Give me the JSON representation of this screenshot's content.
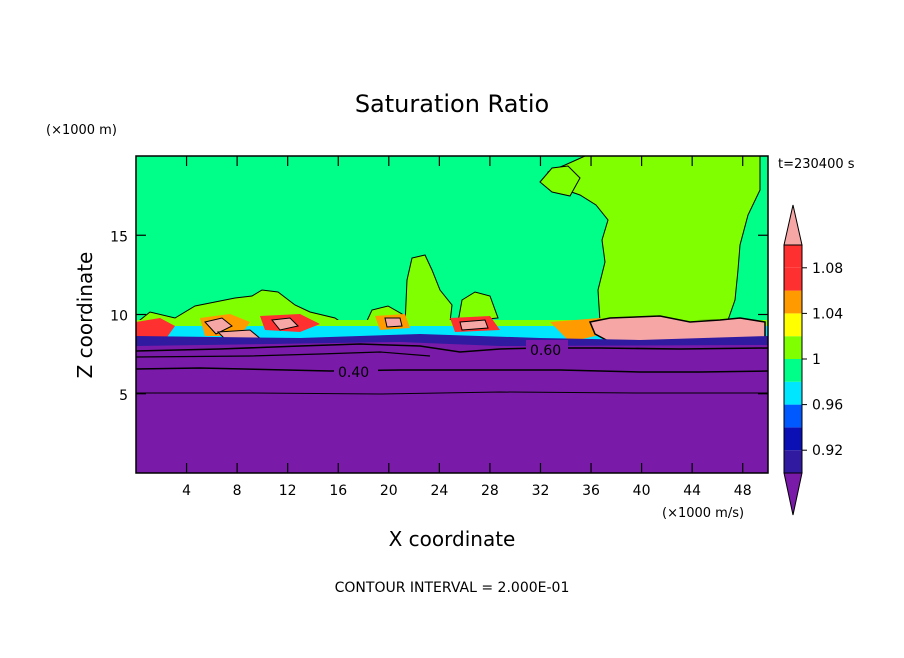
{
  "chart_data": {
    "type": "contour",
    "title": "Saturation Ratio",
    "xlabel": "X coordinate",
    "ylabel": "Z coordinate",
    "x_unit_label": "(×1000 m/s)",
    "y_unit_label": "(×1000 m)",
    "time_label": "t=230400 s",
    "footer": "CONTOUR INTERVAL = 2.000E-01",
    "xlim": [
      0,
      50
    ],
    "ylim": [
      0,
      20
    ],
    "x_ticks": [
      4,
      8,
      12,
      16,
      20,
      24,
      28,
      32,
      36,
      40,
      44,
      48
    ],
    "x_tick_labels": [
      "4",
      "8",
      "12",
      "16",
      "20",
      "24",
      "28",
      "32",
      "36",
      "40",
      "44",
      "48"
    ],
    "y_ticks": [
      5,
      10,
      15
    ],
    "y_tick_labels": [
      "5",
      "10",
      "15"
    ],
    "contour_lines": [
      {
        "label": "0.40",
        "z": 6.4
      },
      {
        "label": "0.60",
        "z": 7.6
      }
    ],
    "colorbar": {
      "levels": [
        0.9,
        0.92,
        0.94,
        0.96,
        0.98,
        1.0,
        1.02,
        1.04,
        1.06,
        1.08,
        1.1
      ],
      "tick_labels": [
        "0.92",
        "0.96",
        "1",
        "1.04",
        "1.08"
      ],
      "colors": [
        "#7a1aa8",
        "#2f1aa0",
        "#0a10b4",
        "#0058ff",
        "#00e6ff",
        "#00ff88",
        "#80ff00",
        "#ffff00",
        "#ff9a00",
        "#ff3030",
        "#f7a6a6"
      ]
    },
    "regions": {
      "below_0.9": "#7a1aa8",
      "0.98_1.0": "#00ff88",
      "1.0_1.02": "#80ff00",
      "above_1.1": "#f7a6a6"
    }
  }
}
